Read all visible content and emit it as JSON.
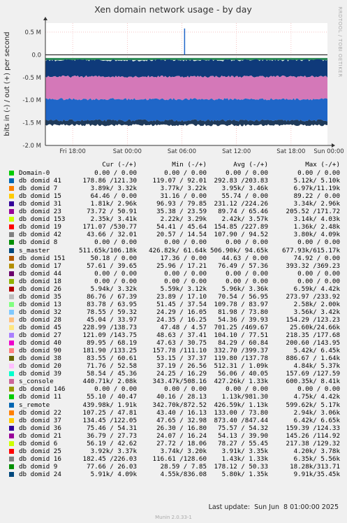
{
  "chart_data": {
    "type": "area",
    "title": "Xen domain network usage - by day",
    "ylabel": "bits in (-) / out (+) per second",
    "side_label": "RRDTOOL / TOBI OETIKER",
    "ylim": [
      -2.0,
      0.7
    ],
    "y_ticks": [
      {
        "v": 0.5,
        "label": "0.5 M"
      },
      {
        "v": 0.0,
        "label": "0.0"
      },
      {
        "v": -0.5,
        "label": "-0.5 M"
      },
      {
        "v": -1.0,
        "label": "-1.0 M"
      },
      {
        "v": -1.5,
        "label": "-1.5 M"
      },
      {
        "v": -2.0,
        "label": "-2.0 M"
      }
    ],
    "x_range": [
      0,
      31
    ],
    "x_ticks": [
      {
        "v": 3,
        "label": "Fri 18:00"
      },
      {
        "v": 9,
        "label": "Sat 00:00"
      },
      {
        "v": 15,
        "label": "Sat 06:00"
      },
      {
        "v": 21,
        "label": "Sat 12:00"
      },
      {
        "v": 27,
        "label": "Sat 18:00"
      },
      {
        "v": 33,
        "label": "Sun 00:00"
      }
    ],
    "bands": [
      {
        "color": "#00cc00",
        "lower": 0.0,
        "upper": 0.0
      },
      {
        "color": "#2e8b57",
        "lower": -0.12,
        "upper": -0.07
      },
      {
        "color": "#0f3a7a",
        "lower": -0.48,
        "upper": -0.12
      },
      {
        "color": "#d478b8",
        "lower": -0.98,
        "upper": -0.48
      },
      {
        "color": "#1f66c8",
        "lower": -1.45,
        "upper": -0.98
      },
      {
        "color": "#1f3a5a",
        "lower": -1.55,
        "upper": -1.45
      }
    ],
    "spike": {
      "x": 15.3,
      "y": 0.58
    },
    "columns": [
      "Cur (-/+)",
      "Min (-/+)",
      "Avg (-/+)",
      "Max (-/+)"
    ],
    "series": [
      {
        "name": "Domain-0",
        "color": "#00cc00",
        "values": [
          "0.00 / 0.00",
          "0.00 / 0.00",
          "0.00 / 0.00",
          "0.00 / 0.00"
        ]
      },
      {
        "name": "db domid 41",
        "color": "#0066b3",
        "values": [
          "178.86 /121.30",
          "119.07 / 92.01",
          "292.83 /203.83",
          "5.12k/ 5.10k"
        ]
      },
      {
        "name": "db domid 7",
        "color": "#ff8000",
        "values": [
          "3.89k/ 3.32k",
          "3.77k/ 3.22k",
          "3.95k/ 3.46k",
          "6.97k/11.19k"
        ]
      },
      {
        "name": "db domid 15",
        "color": "#ffcc00",
        "values": [
          "64.46 / 0.00",
          "31.16 / 0.00",
          "55.74 / 0.00",
          "89.22 / 0.00"
        ]
      },
      {
        "name": "db domid 31",
        "color": "#330099",
        "values": [
          "1.81k/ 2.96k",
          "96.93 / 79.85",
          "231.12 /224.26",
          "3.34k/ 2.96k"
        ]
      },
      {
        "name": "db domid 23",
        "color": "#990099",
        "values": [
          "73.72 / 50.91",
          "35.38 / 23.59",
          "89.74 / 65.46",
          "205.52 /171.72"
        ]
      },
      {
        "name": "db domid 153",
        "color": "#ccff00",
        "values": [
          "2.35k/ 3.41k",
          "2.22k/ 3.29k",
          "2.42k/ 3.57k",
          "3.14k/ 4.03k"
        ]
      },
      {
        "name": "db domid 19",
        "color": "#ff0000",
        "values": [
          "171.07 /530.77",
          "54.41 / 45.64",
          "154.85 /227.89",
          "1.36k/ 2.48k"
        ]
      },
      {
        "name": "db domid 42",
        "color": "#808080",
        "values": [
          "43.66 / 32.01",
          "20.57 / 14.54",
          "107.90 / 94.52",
          "3.80k/ 4.09k"
        ]
      },
      {
        "name": "db domid 8",
        "color": "#008f00",
        "values": [
          "0.00 / 0.00",
          "0.00 / 0.00",
          "0.00 / 0.00",
          "0.00 / 0.00"
        ]
      },
      {
        "name": "s_master",
        "color": "#00487d",
        "values": [
          "511.65k/106.18k",
          "426.82k/ 61.64k",
          "506.90k/ 94.65k",
          "677.93k/615.17k"
        ]
      },
      {
        "name": "db domid 151",
        "color": "#b35a00",
        "values": [
          "50.18 / 0.00",
          "17.36 / 0.00",
          "44.63 / 0.00",
          "74.92 / 0.00"
        ]
      },
      {
        "name": "db domid 17",
        "color": "#b38f00",
        "values": [
          "57.61 / 39.65",
          "25.96 / 17.21",
          "76.49 / 57.36",
          "393.32 /369.23"
        ]
      },
      {
        "name": "db domid 44",
        "color": "#6b006b",
        "values": [
          "0.00 / 0.00",
          "0.00 / 0.00",
          "0.00 / 0.00",
          "0.00 / 0.00"
        ]
      },
      {
        "name": "db domid 18",
        "color": "#8fb300",
        "values": [
          "0.00 / 0.00",
          "0.00 / 0.00",
          "0.00 / 0.00",
          "0.00 / 0.00"
        ]
      },
      {
        "name": "db domid 26",
        "color": "#b30000",
        "values": [
          "5.94k/ 3.32k",
          "5.59k/ 3.12k",
          "5.96k/ 3.36k",
          "6.59k/ 4.42k"
        ]
      },
      {
        "name": "db domid 35",
        "color": "#bebebe",
        "values": [
          "86.76 / 67.39",
          "23.89 / 17.10",
          "70.54 / 56.95",
          "273.97 /233.92"
        ]
      },
      {
        "name": "db domid 13",
        "color": "#80ff80",
        "values": [
          "83.78 / 63.95",
          "51.45 / 37.54",
          "109.78 / 83.97",
          "2.58k/ 2.00k"
        ]
      },
      {
        "name": "db domid 32",
        "color": "#80c9ff",
        "values": [
          "78.55 / 59.32",
          "24.29 / 16.05",
          "81.98 / 73.80",
          "3.56k/ 3.42k"
        ]
      },
      {
        "name": "db domid 28",
        "color": "#ffc080",
        "values": [
          "45.04 / 33.97",
          "24.35 / 16.25",
          "54.36 / 39.93",
          "154.29 /123.23"
        ]
      },
      {
        "name": "db domid 45",
        "color": "#ffe680",
        "values": [
          "228.99 /138.73",
          "47.48 / 4.57",
          "701.25 /469.67",
          "25.60k/24.66k"
        ]
      },
      {
        "name": "db domid 27",
        "color": "#aa80ff",
        "values": [
          "121.09 /143.75",
          "48.63 / 37.41",
          "104.10 / 77.51",
          "218.35 /177.68"
        ]
      },
      {
        "name": "db domid 40",
        "color": "#ee00cc",
        "values": [
          "89.95 / 68.19",
          "47.63 / 30.75",
          "84.29 / 60.84",
          "200.60 /143.95"
        ]
      },
      {
        "name": "db domid 90",
        "color": "#ff8080",
        "values": [
          "181.90 /133.25",
          "157.78 /111.10",
          "332.70 /399.37",
          "5.42k/ 6.45k"
        ]
      },
      {
        "name": "db domid 38",
        "color": "#666600",
        "values": [
          "83.55 / 60.61",
          "53.15 / 37.37",
          "119.80 /137.78",
          "886.67 / 1.64k"
        ]
      },
      {
        "name": "db domid 20",
        "color": "#ffbfff",
        "values": [
          "71.76 / 52.58",
          "37.19 / 26.56",
          "512.31 / 1.09k",
          "4.84k/ 5.37k"
        ]
      },
      {
        "name": "db domid 39",
        "color": "#00ffcc",
        "values": [
          "58.54 / 45.36",
          "24.25 / 16.29",
          "56.06 / 40.05",
          "157.69 /127.59"
        ]
      },
      {
        "name": "s_console",
        "color": "#cc6699",
        "values": [
          "440.71k/ 2.08k",
          "343.47k/508.16",
          "427.26k/ 1.33k",
          "600.35k/ 8.41k"
        ]
      },
      {
        "name": "db domid 146",
        "color": "#999900",
        "values": [
          "0.00 / 0.00",
          "0.00 / 0.00",
          "0.00 / 0.00",
          "0.00 / 0.00"
        ]
      },
      {
        "name": "db domid 11",
        "color": "#00cc00",
        "values": [
          "55.10 / 40.47",
          "40.16 / 28.13",
          "1.13k/981.30",
          "4.75k/ 4.42k"
        ]
      },
      {
        "name": "s_remote",
        "color": "#0066b3",
        "values": [
          "439.98k/ 1.91k",
          "342.70k/872.52",
          "426.59k/ 1.13k",
          "599.62k/ 5.17k"
        ]
      },
      {
        "name": "db domid 22",
        "color": "#ff8000",
        "values": [
          "107.25 / 47.81",
          "43.40 / 16.13",
          "133.00 / 73.80",
          "2.94k/ 3.06k"
        ]
      },
      {
        "name": "db domid 37",
        "color": "#ffcc00",
        "values": [
          "134.45 /122.05",
          "47.65 / 32.98",
          "873.40 /847.44",
          "6.42k/ 6.65k"
        ]
      },
      {
        "name": "db domid 36",
        "color": "#330099",
        "values": [
          "75.46 / 54.31",
          "26.30 / 16.80",
          "75.57 / 54.32",
          "159.39 /124.33"
        ]
      },
      {
        "name": "db domid 21",
        "color": "#990099",
        "values": [
          "36.79 / 27.73",
          "24.07 / 16.24",
          "54.13 / 39.90",
          "145.26 /114.92"
        ]
      },
      {
        "name": "db domid 6",
        "color": "#ccff00",
        "values": [
          "56.19 / 42.62",
          "27.72 / 18.06",
          "78.27 / 55.45",
          "217.38 /129.32"
        ]
      },
      {
        "name": "db domid 25",
        "color": "#ff0000",
        "values": [
          "3.92k/ 3.37k",
          "3.74k/ 3.20k",
          "3.91k/ 3.35k",
          "4.20k/ 3.78k"
        ]
      },
      {
        "name": "db domid 16",
        "color": "#808080",
        "values": [
          "182.45 /226.03",
          "116.61 /128.60",
          "1.43k/ 1.33k",
          "6.35k/ 5.56k"
        ]
      },
      {
        "name": "db domid 9",
        "color": "#008f00",
        "values": [
          "77.66 / 26.03",
          "28.59 / 7.85",
          "178.12 / 50.33",
          "18.28k/313.71"
        ]
      },
      {
        "name": "db domid 24",
        "color": "#00487d",
        "values": [
          "5.91k/ 4.09k",
          "4.55k/836.08",
          "5.80k/ 1.35k",
          "9.91k/35.45k"
        ]
      }
    ]
  },
  "footer": {
    "last_update": "Last update:  Sun Jun  8 01:00:00 2025",
    "munin": "Munin 2.0.33-1"
  }
}
